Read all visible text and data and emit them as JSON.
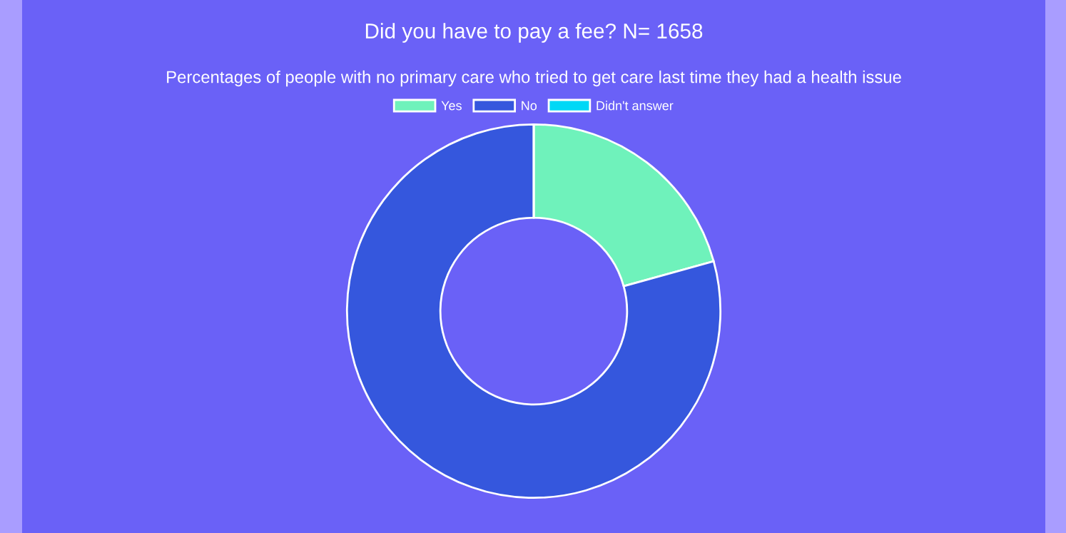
{
  "chart_data": {
    "type": "donut",
    "title": "Did you have to pay a fee? N= 1658",
    "subtitle": "Percentages of people with no primary care who tried to get care last time they had a health issue",
    "categories": [
      "Yes",
      "No",
      "Didn't answer"
    ],
    "values": [
      20.7,
      79.3,
      0
    ],
    "colors": [
      "#6ff2bb",
      "#3557dd",
      "#00d8f6"
    ],
    "legend": "top"
  }
}
